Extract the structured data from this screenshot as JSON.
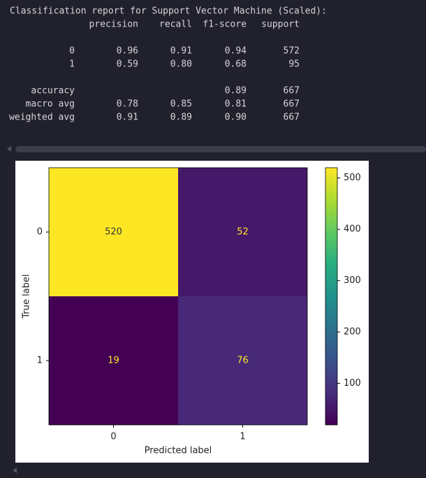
{
  "report": {
    "title": "Classification report for Support Vector Machine (Scaled):",
    "columns": [
      "precision",
      "recall",
      "f1-score",
      "support"
    ],
    "rows": [
      {
        "label": "0",
        "values": [
          "0.96",
          "0.91",
          "0.94",
          "572"
        ]
      },
      {
        "label": "1",
        "values": [
          "0.59",
          "0.80",
          "0.68",
          "95"
        ]
      },
      {
        "label": "accuracy",
        "values": [
          null,
          null,
          "0.89",
          "667"
        ]
      },
      {
        "label": "macro avg",
        "values": [
          "0.78",
          "0.85",
          "0.81",
          "667"
        ]
      },
      {
        "label": "weighted avg",
        "values": [
          "0.91",
          "0.89",
          "0.90",
          "667"
        ]
      }
    ]
  },
  "chart_data": {
    "type": "heatmap",
    "xlabel": "Predicted label",
    "ylabel": "True label",
    "x_categories": [
      "0",
      "1"
    ],
    "y_categories": [
      "0",
      "1"
    ],
    "values": [
      [
        520,
        52
      ],
      [
        19,
        76
      ]
    ],
    "colormap": "viridis",
    "clim": [
      19,
      520
    ],
    "cticks": [
      100,
      200,
      300,
      400,
      500
    ]
  }
}
